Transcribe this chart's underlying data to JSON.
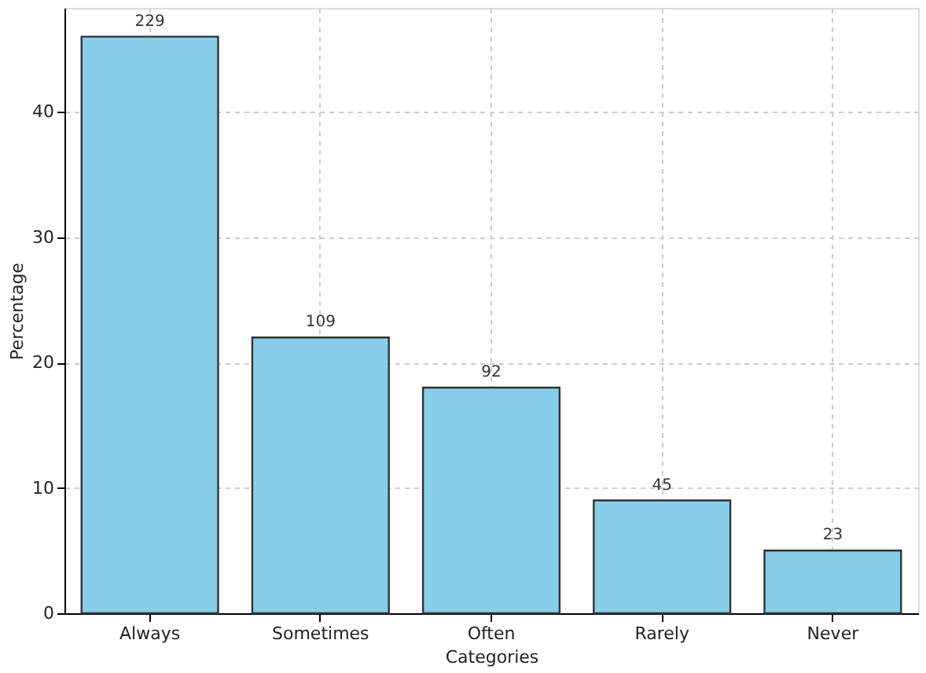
{
  "chart_data": {
    "type": "bar",
    "xlabel": "Categories",
    "ylabel": "Percentage",
    "categories": [
      "Always",
      "Sometimes",
      "Often",
      "Rarely",
      "Never"
    ],
    "values": [
      46,
      22,
      18,
      9,
      5
    ],
    "annotations": [
      {
        "text": "229",
        "x": "Always",
        "y": 46
      },
      {
        "text": "109",
        "x": "Sometimes",
        "y": 22
      },
      {
        "text": "92",
        "x": "Often",
        "y": 18
      },
      {
        "text": "45",
        "x": "Rarely",
        "y": 9
      },
      {
        "text": "23",
        "x": "Never",
        "y": 5
      }
    ],
    "color": "#87ceeb",
    "ylim": [
      0,
      48.3
    ],
    "yticks": [
      0,
      10,
      20,
      30,
      40
    ],
    "grid": true
  }
}
